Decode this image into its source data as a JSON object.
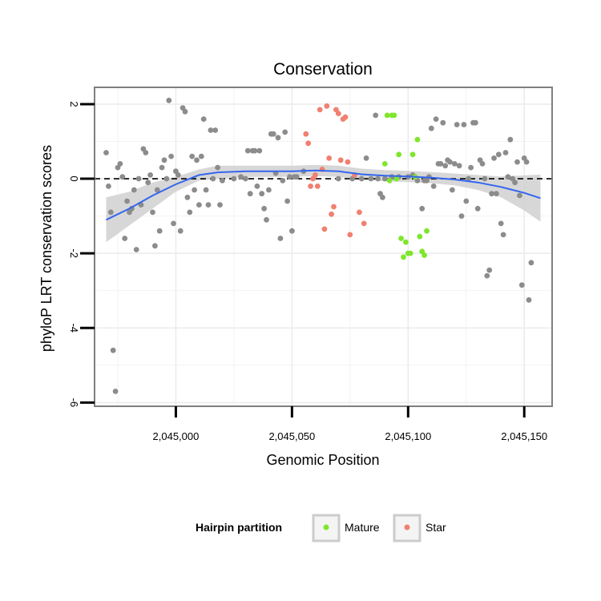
{
  "chart_data": {
    "type": "scatter",
    "title": "Conservation",
    "xlabel": "Genomic Position",
    "ylabel": "phyloP LRT conservation scores",
    "xlim": [
      2044965,
      2045162
    ],
    "ylim": [
      -6.1,
      2.45
    ],
    "x_ticks": [
      2045000,
      2045050,
      2045100,
      2045150
    ],
    "x_tick_labels": [
      "2,045,000",
      "2,045,050",
      "2,045,100",
      "2,045,150"
    ],
    "y_ticks": [
      -6,
      -4,
      -2,
      0,
      2
    ],
    "y_tick_labels": [
      "-6",
      "-4",
      "-2",
      "0",
      "2"
    ],
    "reference_line": {
      "y": 0,
      "style": "dashed"
    },
    "legend": {
      "title": "Hairpin partition",
      "entries": [
        {
          "label": "Mature",
          "color": "#7FE62E"
        },
        {
          "label": "Star",
          "color": "#F08070"
        }
      ]
    },
    "colors": {
      "other": "#8C8C8C",
      "Mature": "#7FE62E",
      "Star": "#F08070",
      "smooth_line": "#3366EE",
      "smooth_band": "#D0D0D0"
    },
    "series": [
      {
        "name": "other",
        "points": [
          [
            2044970,
            0.7
          ],
          [
            2044971,
            -0.2
          ],
          [
            2044972,
            -0.9
          ],
          [
            2044973,
            -4.6
          ],
          [
            2044974,
            -5.7
          ],
          [
            2044975,
            0.3
          ],
          [
            2044976,
            0.4
          ],
          [
            2044977,
            0.05
          ],
          [
            2044978,
            -1.6
          ],
          [
            2044979,
            -0.6
          ],
          [
            2044980,
            -0.9
          ],
          [
            2044981,
            -0.8
          ],
          [
            2044982,
            -0.3
          ],
          [
            2044983,
            -1.9
          ],
          [
            2044984,
            0.0
          ],
          [
            2044985,
            -0.7
          ],
          [
            2044986,
            0.8
          ],
          [
            2044987,
            0.7
          ],
          [
            2044988,
            -0.1
          ],
          [
            2044989,
            0.1
          ],
          [
            2044990,
            -0.9
          ],
          [
            2044991,
            -1.8
          ],
          [
            2044992,
            -0.3
          ],
          [
            2044993,
            -1.4
          ],
          [
            2044994,
            0.3
          ],
          [
            2044995,
            0.5
          ],
          [
            2044996,
            0.0
          ],
          [
            2044997,
            2.1
          ],
          [
            2044998,
            0.6
          ],
          [
            2044999,
            -1.2
          ],
          [
            2045000,
            0.2
          ],
          [
            2045001,
            0.1
          ],
          [
            2045002,
            -1.4
          ],
          [
            2045003,
            1.9
          ],
          [
            2045004,
            1.8
          ],
          [
            2045005,
            -0.5
          ],
          [
            2045006,
            -0.9
          ],
          [
            2045007,
            0.6
          ],
          [
            2045008,
            -0.3
          ],
          [
            2045009,
            0.5
          ],
          [
            2045010,
            -0.7
          ],
          [
            2045011,
            0.6
          ],
          [
            2045012,
            1.6
          ],
          [
            2045013,
            -0.3
          ],
          [
            2045014,
            -0.7
          ],
          [
            2045015,
            1.3
          ],
          [
            2045016,
            0.0
          ],
          [
            2045017,
            1.3
          ],
          [
            2045018,
            0.3
          ],
          [
            2045019,
            -0.7
          ],
          [
            2045020,
            -0.05
          ],
          [
            2045025,
            0.0
          ],
          [
            2045028,
            0.05
          ],
          [
            2045030,
            0.0
          ],
          [
            2045031,
            0.75
          ],
          [
            2045032,
            -0.4
          ],
          [
            2045033,
            0.75
          ],
          [
            2045034,
            0.75
          ],
          [
            2045035,
            -0.2
          ],
          [
            2045036,
            0.75
          ],
          [
            2045037,
            -0.4
          ],
          [
            2045038,
            -0.8
          ],
          [
            2045039,
            -1.1
          ],
          [
            2045040,
            -0.3
          ],
          [
            2045041,
            1.2
          ],
          [
            2045042,
            1.2
          ],
          [
            2045043,
            0.15
          ],
          [
            2045044,
            1.1
          ],
          [
            2045045,
            -1.6
          ],
          [
            2045046,
            -0.05
          ],
          [
            2045047,
            1.25
          ],
          [
            2045048,
            -0.6
          ],
          [
            2045049,
            0.05
          ],
          [
            2045050,
            -1.4
          ],
          [
            2045051,
            0.05
          ],
          [
            2045052,
            0.05
          ],
          [
            2045055,
            0.2
          ],
          [
            2045070,
            0.0
          ],
          [
            2045076,
            0.0
          ],
          [
            2045080,
            0.0
          ],
          [
            2045082,
            0.55
          ],
          [
            2045084,
            0.0
          ],
          [
            2045086,
            1.7
          ],
          [
            2045087,
            0.0
          ],
          [
            2045088,
            -0.4
          ],
          [
            2045089,
            -0.5
          ],
          [
            2045090,
            0.0
          ],
          [
            2045093,
            0.05
          ],
          [
            2045096,
            0.05
          ],
          [
            2045100,
            0.05
          ],
          [
            2045102,
            0.1
          ],
          [
            2045104,
            -0.05
          ],
          [
            2045106,
            -0.8
          ],
          [
            2045107,
            -0.05
          ],
          [
            2045108,
            -0.05
          ],
          [
            2045109,
            0.05
          ],
          [
            2045110,
            1.35
          ],
          [
            2045111,
            -0.2
          ],
          [
            2045112,
            1.6
          ],
          [
            2045113,
            0.4
          ],
          [
            2045114,
            0.4
          ],
          [
            2045115,
            1.5
          ],
          [
            2045116,
            0.35
          ],
          [
            2045117,
            0.5
          ],
          [
            2045118,
            0.45
          ],
          [
            2045119,
            -0.3
          ],
          [
            2045120,
            0.4
          ],
          [
            2045121,
            1.45
          ],
          [
            2045122,
            0.35
          ],
          [
            2045123,
            -1.0
          ],
          [
            2045124,
            1.45
          ],
          [
            2045125,
            -0.6
          ],
          [
            2045126,
            0.0
          ],
          [
            2045127,
            0.3
          ],
          [
            2045128,
            1.5
          ],
          [
            2045129,
            1.5
          ],
          [
            2045130,
            -0.8
          ],
          [
            2045131,
            0.5
          ],
          [
            2045132,
            0.4
          ],
          [
            2045133,
            0.0
          ],
          [
            2045134,
            -2.6
          ],
          [
            2045135,
            -2.45
          ],
          [
            2045136,
            -0.4
          ],
          [
            2045137,
            0.55
          ],
          [
            2045138,
            -0.4
          ],
          [
            2045139,
            0.65
          ],
          [
            2045140,
            -1.2
          ],
          [
            2045141,
            -1.5
          ],
          [
            2045142,
            0.7
          ],
          [
            2045143,
            0.05
          ],
          [
            2045144,
            1.05
          ],
          [
            2045145,
            0.0
          ],
          [
            2045146,
            -0.1
          ],
          [
            2045147,
            0.45
          ],
          [
            2045148,
            -0.45
          ],
          [
            2045149,
            -2.85
          ],
          [
            2045150,
            0.55
          ],
          [
            2045151,
            0.45
          ],
          [
            2045152,
            -3.25
          ],
          [
            2045153,
            -2.25
          ]
        ]
      },
      {
        "name": "Star",
        "points": [
          [
            2045056,
            1.2
          ],
          [
            2045057,
            0.95
          ],
          [
            2045058,
            -0.2
          ],
          [
            2045059,
            0.0
          ],
          [
            2045060,
            0.1
          ],
          [
            2045061,
            -0.2
          ],
          [
            2045062,
            1.85
          ],
          [
            2045063,
            0.25
          ],
          [
            2045064,
            -1.35
          ],
          [
            2045065,
            1.95
          ],
          [
            2045066,
            0.55
          ],
          [
            2045067,
            -0.95
          ],
          [
            2045068,
            -0.75
          ],
          [
            2045069,
            1.85
          ],
          [
            2045070,
            1.75
          ],
          [
            2045071,
            0.5
          ],
          [
            2045072,
            1.6
          ],
          [
            2045073,
            1.65
          ],
          [
            2045074,
            0.45
          ],
          [
            2045075,
            -1.5
          ],
          [
            2045077,
            0.1
          ],
          [
            2045079,
            -0.9
          ],
          [
            2045081,
            -1.2
          ]
        ]
      },
      {
        "name": "Mature",
        "points": [
          [
            2045090,
            0.4
          ],
          [
            2045091,
            1.7
          ],
          [
            2045092,
            -0.05
          ],
          [
            2045093,
            1.7
          ],
          [
            2045094,
            1.7
          ],
          [
            2045095,
            0.0
          ],
          [
            2045096,
            0.65
          ],
          [
            2045097,
            -1.6
          ],
          [
            2045098,
            -2.1
          ],
          [
            2045099,
            -1.7
          ],
          [
            2045100,
            -2.0
          ],
          [
            2045101,
            -2.0
          ],
          [
            2045102,
            0.65
          ],
          [
            2045103,
            0.05
          ],
          [
            2045104,
            1.05
          ],
          [
            2045105,
            -1.55
          ],
          [
            2045106,
            -1.95
          ],
          [
            2045107,
            -2.05
          ],
          [
            2045108,
            -1.4
          ]
        ]
      }
    ],
    "smooth": {
      "x": [
        2044970,
        2044980,
        2044990,
        2045000,
        2045010,
        2045018,
        2045030,
        2045040,
        2045050,
        2045060,
        2045070,
        2045080,
        2045090,
        2045100,
        2045110,
        2045120,
        2045130,
        2045140,
        2045150,
        2045157
      ],
      "y": [
        -1.1,
        -0.8,
        -0.45,
        -0.15,
        0.1,
        0.17,
        0.2,
        0.2,
        0.2,
        0.22,
        0.2,
        0.12,
        0.08,
        0.06,
        0.03,
        -0.02,
        -0.1,
        -0.22,
        -0.38,
        -0.52
      ],
      "lower": [
        -1.7,
        -1.25,
        -0.8,
        -0.35,
        -0.05,
        0.0,
        0.05,
        0.05,
        0.05,
        0.07,
        0.05,
        -0.03,
        -0.07,
        -0.09,
        -0.12,
        -0.18,
        -0.3,
        -0.5,
        -0.85,
        -1.15
      ],
      "upper": [
        -0.5,
        -0.35,
        -0.1,
        0.05,
        0.25,
        0.35,
        0.35,
        0.35,
        0.35,
        0.37,
        0.35,
        0.27,
        0.23,
        0.21,
        0.18,
        0.14,
        0.1,
        0.06,
        0.09,
        0.11
      ]
    }
  }
}
